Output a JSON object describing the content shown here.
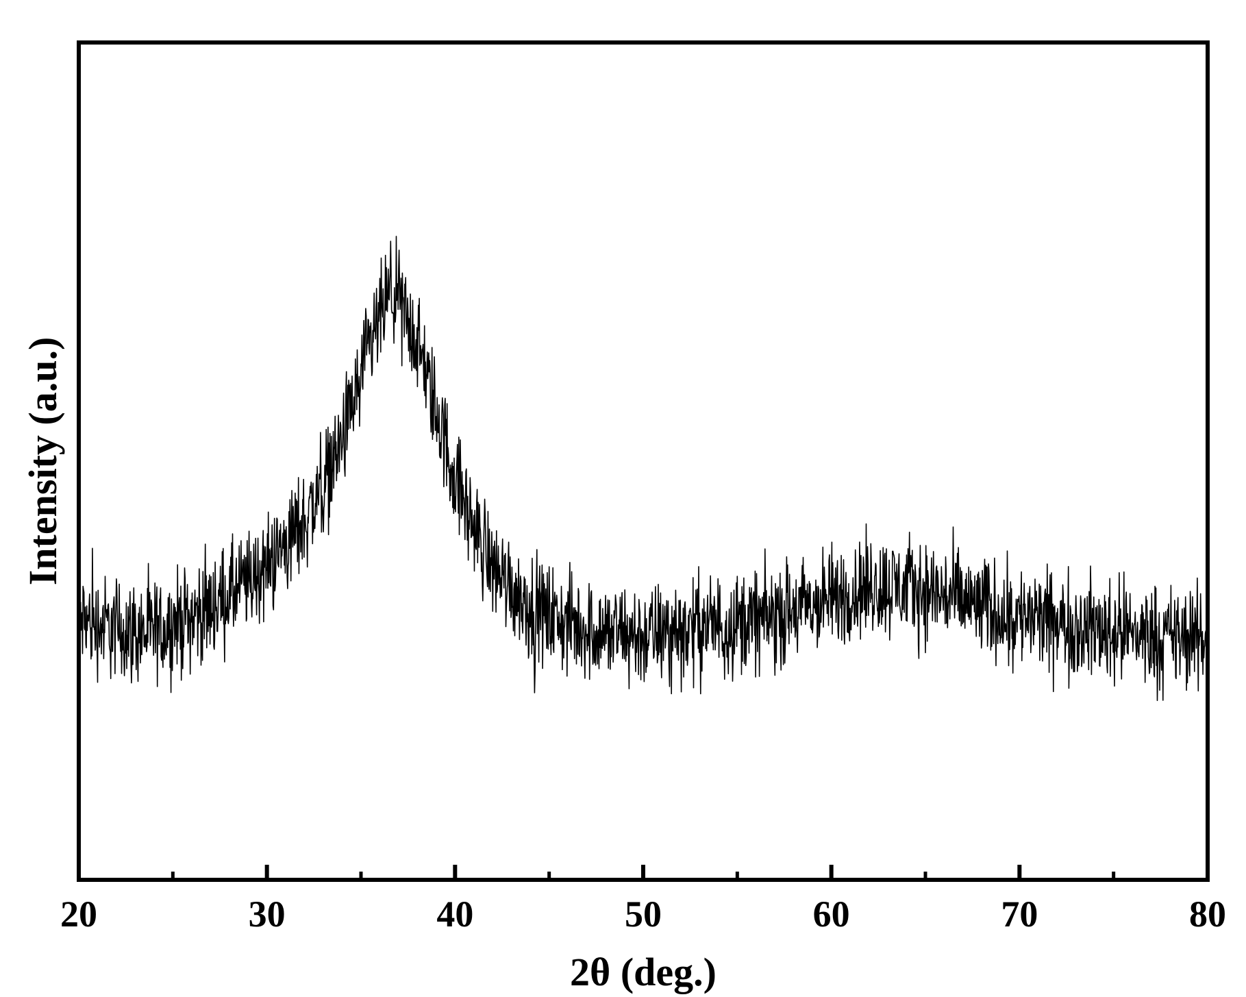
{
  "chart_data": {
    "type": "line",
    "title": "",
    "xlabel": "2θ (deg.)",
    "ylabel": "Intensity (a.u.)",
    "xlim": [
      20,
      80
    ],
    "ylim": [
      0,
      100
    ],
    "y_ticks_labeled": false,
    "grid": false,
    "legend": "none",
    "line_color": "#000000",
    "x_ticks": [
      {
        "value": 20,
        "label": "20"
      },
      {
        "value": 30,
        "label": "30"
      },
      {
        "value": 40,
        "label": "40"
      },
      {
        "value": 50,
        "label": "50"
      },
      {
        "value": 60,
        "label": "60"
      },
      {
        "value": 70,
        "label": "70"
      },
      {
        "value": 80,
        "label": "80"
      }
    ],
    "x_minor_ticks": [
      25,
      35,
      45,
      55,
      65,
      75
    ],
    "series": [
      {
        "x": [
          20,
          21,
          22,
          23,
          24,
          25,
          26,
          27,
          28,
          29,
          30,
          31,
          32,
          33,
          34,
          35,
          36,
          36.6,
          37,
          38,
          39,
          40,
          41,
          42,
          43,
          44,
          45,
          46,
          48,
          50,
          52,
          54,
          56,
          58,
          60,
          62,
          64,
          66,
          68,
          70,
          72,
          74,
          76,
          78,
          80
        ],
        "values": [
          31,
          30.5,
          30,
          29.5,
          29.5,
          30.5,
          31.5,
          32.5,
          34,
          35.5,
          37.5,
          40,
          43,
          47,
          52.5,
          60,
          67,
          70,
          69,
          64,
          56,
          48,
          42,
          37.5,
          35,
          32.5,
          31.5,
          30.5,
          29.5,
          29,
          30,
          30.5,
          31,
          32,
          33.5,
          35,
          35,
          34,
          32.5,
          31.5,
          30.5,
          30,
          29.5,
          29,
          28.5
        ],
        "noise_amplitude": 3
      }
    ]
  }
}
